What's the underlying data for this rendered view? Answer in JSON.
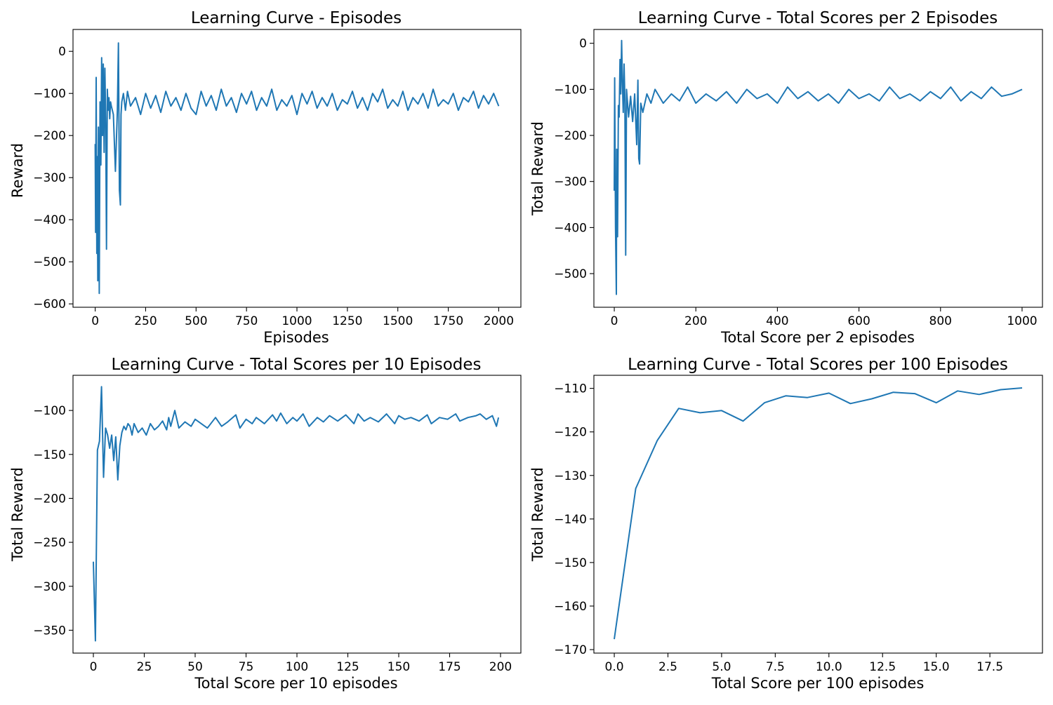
{
  "colors": {
    "series": "#1f77b4",
    "axes": "#000000",
    "background": "#ffffff"
  },
  "chart_data": [
    {
      "type": "line",
      "title": "Learning Curve - Episodes",
      "xlabel": "Episodes",
      "ylabel": "Reward",
      "xlim": [
        -110,
        2110
      ],
      "ylim": [
        -608,
        52
      ],
      "xticks": [
        0,
        250,
        500,
        750,
        1000,
        1250,
        1500,
        1750,
        2000
      ],
      "xtick_labels": [
        "0",
        "250",
        "500",
        "750",
        "1000",
        "1250",
        "1500",
        "1750",
        "2000"
      ],
      "yticks": [
        -600,
        -500,
        -400,
        -300,
        -200,
        -100,
        0
      ],
      "ytick_labels": [
        "−600",
        "−500",
        "−400",
        "−300",
        "−200",
        "−100",
        "0"
      ],
      "grid": false,
      "series": [
        {
          "x": [
            0,
            2,
            5,
            8,
            10,
            13,
            16,
            20,
            24,
            28,
            32,
            36,
            40,
            44,
            48,
            52,
            56,
            60,
            64,
            68,
            72,
            76,
            80,
            90,
            100,
            110,
            115,
            120,
            125,
            128,
            132,
            140,
            150,
            160,
            175,
            200,
            225,
            250,
            275,
            300,
            325,
            350,
            375,
            400,
            425,
            450,
            475,
            500,
            525,
            550,
            575,
            600,
            625,
            650,
            675,
            700,
            725,
            750,
            775,
            800,
            825,
            850,
            875,
            900,
            925,
            950,
            975,
            1000,
            1025,
            1050,
            1075,
            1100,
            1125,
            1150,
            1175,
            1200,
            1225,
            1250,
            1275,
            1300,
            1325,
            1350,
            1375,
            1400,
            1425,
            1450,
            1475,
            1500,
            1525,
            1550,
            1575,
            1600,
            1625,
            1650,
            1675,
            1700,
            1725,
            1750,
            1775,
            1800,
            1825,
            1850,
            1875,
            1900,
            1925,
            1950,
            1975,
            2000
          ],
          "y": [
            -220,
            -430,
            -62,
            -480,
            -250,
            -545,
            -180,
            -575,
            -120,
            -270,
            -15,
            -200,
            -30,
            -240,
            -40,
            -170,
            -470,
            -90,
            -140,
            -110,
            -160,
            -120,
            -130,
            -150,
            -285,
            -140,
            20,
            -330,
            -365,
            -150,
            -120,
            -100,
            -140,
            -95,
            -130,
            -110,
            -150,
            -100,
            -135,
            -105,
            -145,
            -95,
            -130,
            -110,
            -140,
            -100,
            -135,
            -150,
            -95,
            -130,
            -105,
            -140,
            -90,
            -130,
            -110,
            -145,
            -100,
            -125,
            -95,
            -140,
            -110,
            -130,
            -90,
            -140,
            -115,
            -130,
            -105,
            -150,
            -100,
            -125,
            -95,
            -135,
            -110,
            -130,
            -100,
            -140,
            -115,
            -125,
            -95,
            -135,
            -110,
            -140,
            -100,
            -120,
            -90,
            -135,
            -115,
            -130,
            -95,
            -140,
            -110,
            -125,
            -100,
            -135,
            -90,
            -130,
            -115,
            -125,
            -100,
            -140,
            -110,
            -120,
            -95,
            -135,
            -105,
            -125,
            -100,
            -130
          ]
        }
      ]
    },
    {
      "type": "line",
      "title": "Learning Curve - Total Scores per 2 Episodes",
      "xlabel": "Total Score per 2 episodes",
      "ylabel": "Total Reward",
      "xlim": [
        -50,
        1050
      ],
      "ylim": [
        -573,
        30
      ],
      "xticks": [
        0,
        200,
        400,
        600,
        800,
        1000
      ],
      "xtick_labels": [
        "0",
        "200",
        "400",
        "600",
        "800",
        "1000"
      ],
      "yticks": [
        -500,
        -400,
        -300,
        -200,
        -100,
        0
      ],
      "ytick_labels": [
        "−500",
        "−400",
        "−300",
        "−200",
        "−100",
        "0"
      ],
      "grid": false,
      "series": [
        {
          "x": [
            0,
            1,
            3,
            5,
            6,
            8,
            10,
            12,
            14,
            16,
            18,
            20,
            22,
            24,
            26,
            28,
            30,
            35,
            40,
            45,
            50,
            55,
            58,
            60,
            62,
            65,
            70,
            80,
            90,
            100,
            120,
            140,
            160,
            180,
            200,
            225,
            250,
            275,
            300,
            325,
            350,
            375,
            400,
            425,
            450,
            475,
            500,
            525,
            550,
            575,
            600,
            625,
            650,
            675,
            700,
            725,
            750,
            775,
            800,
            825,
            850,
            875,
            900,
            925,
            950,
            975,
            1000
          ],
          "y": [
            -320,
            -75,
            -400,
            -545,
            -230,
            -420,
            -135,
            -160,
            -35,
            -110,
            6,
            -90,
            -150,
            -45,
            -120,
            -460,
            -100,
            -160,
            -115,
            -170,
            -110,
            -220,
            -80,
            -250,
            -262,
            -130,
            -150,
            -110,
            -130,
            -100,
            -130,
            -110,
            -125,
            -95,
            -130,
            -110,
            -125,
            -105,
            -130,
            -100,
            -120,
            -110,
            -130,
            -95,
            -120,
            -105,
            -125,
            -110,
            -130,
            -100,
            -120,
            -110,
            -125,
            -95,
            -120,
            -110,
            -125,
            -105,
            -120,
            -95,
            -125,
            -105,
            -120,
            -95,
            -115,
            -110,
            -100
          ]
        }
      ]
    },
    {
      "type": "line",
      "title": "Learning Curve - Total Scores per 10 Episodes",
      "xlabel": "Total Score per 10 episodes",
      "ylabel": "Total Reward",
      "xlim": [
        -10,
        210
      ],
      "ylim": [
        -376,
        -60
      ],
      "xticks": [
        0,
        25,
        50,
        75,
        100,
        125,
        150,
        175,
        200
      ],
      "xtick_labels": [
        "0",
        "25",
        "50",
        "75",
        "100",
        "125",
        "150",
        "175",
        "200"
      ],
      "yticks": [
        -350,
        -300,
        -250,
        -200,
        -150,
        -100
      ],
      "ytick_labels": [
        "−350",
        "−300",
        "−250",
        "−200",
        "−150",
        "−100"
      ],
      "grid": false,
      "series": [
        {
          "x": [
            0,
            1,
            2,
            3,
            4,
            5,
            6,
            7,
            8,
            9,
            10,
            11,
            12,
            13,
            14,
            15,
            16,
            17,
            18,
            19,
            20,
            22,
            24,
            26,
            28,
            30,
            32,
            34,
            36,
            37,
            38,
            40,
            42,
            45,
            48,
            50,
            53,
            56,
            60,
            63,
            66,
            70,
            72,
            75,
            78,
            80,
            84,
            88,
            90,
            92,
            95,
            98,
            100,
            103,
            106,
            110,
            113,
            116,
            120,
            124,
            128,
            130,
            133,
            136,
            140,
            144,
            148,
            150,
            153,
            156,
            160,
            164,
            166,
            170,
            174,
            178,
            180,
            184,
            188,
            190,
            193,
            196,
            198,
            199
          ],
          "y": [
            -272,
            -362,
            -145,
            -135,
            -73,
            -176,
            -120,
            -128,
            -143,
            -128,
            -157,
            -130,
            -179,
            -140,
            -125,
            -118,
            -122,
            -115,
            -118,
            -128,
            -115,
            -125,
            -120,
            -128,
            -115,
            -122,
            -118,
            -112,
            -122,
            -108,
            -118,
            -100,
            -120,
            -113,
            -118,
            -110,
            -115,
            -120,
            -108,
            -118,
            -113,
            -105,
            -120,
            -110,
            -115,
            -108,
            -115,
            -105,
            -112,
            -103,
            -115,
            -108,
            -112,
            -104,
            -118,
            -108,
            -113,
            -106,
            -112,
            -105,
            -115,
            -104,
            -112,
            -108,
            -113,
            -104,
            -115,
            -106,
            -110,
            -108,
            -112,
            -105,
            -115,
            -108,
            -110,
            -104,
            -112,
            -108,
            -106,
            -104,
            -110,
            -106,
            -118,
            -108
          ]
        }
      ]
    },
    {
      "type": "line",
      "title": "Learning Curve - Total Scores per 100 Episodes",
      "xlabel": "Total Score per 100 episodes",
      "ylabel": "Total Reward",
      "xlim": [
        -0.95,
        19.95
      ],
      "ylim": [
        -170.8,
        -107.0
      ],
      "xticks": [
        0,
        2.5,
        5,
        7.5,
        10,
        12.5,
        15,
        17.5
      ],
      "xtick_labels": [
        "0.0",
        "2.5",
        "5.0",
        "7.5",
        "10.0",
        "12.5",
        "15.0",
        "17.5"
      ],
      "yticks": [
        -170,
        -160,
        -150,
        -140,
        -130,
        -120,
        -110
      ],
      "ytick_labels": [
        "−170",
        "−160",
        "−150",
        "−140",
        "−130",
        "−120",
        "−110"
      ],
      "grid": false,
      "series": [
        {
          "x": [
            0,
            1,
            2,
            3,
            4,
            5,
            6,
            7,
            8,
            9,
            10,
            11,
            12,
            13,
            14,
            15,
            16,
            17,
            18,
            19
          ],
          "y": [
            -167.6,
            -133.0,
            -122.0,
            -114.6,
            -115.6,
            -115.1,
            -117.5,
            -113.3,
            -111.7,
            -112.1,
            -111.1,
            -113.5,
            -112.4,
            -110.9,
            -111.2,
            -113.3,
            -110.6,
            -111.4,
            -110.3,
            -109.9
          ]
        }
      ]
    }
  ]
}
